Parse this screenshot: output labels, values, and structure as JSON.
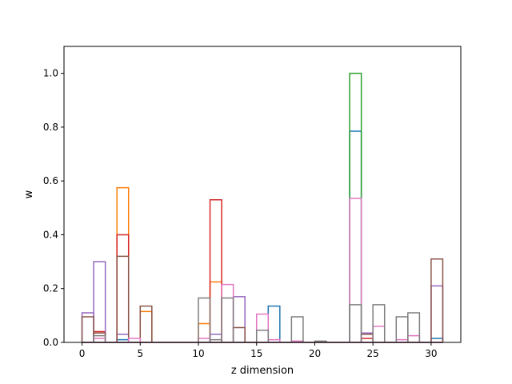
{
  "chart_data": {
    "type": "histogram-step",
    "title": "",
    "xlabel": "z dimension",
    "ylabel": "w",
    "xlim": [
      -1.55,
      32.55
    ],
    "ylim": [
      0,
      1.1
    ],
    "xticks": [
      0,
      5,
      10,
      15,
      20,
      25,
      30
    ],
    "yticks": [
      0.0,
      0.2,
      0.4,
      0.6,
      0.8,
      1.0
    ],
    "xtick_labels": [
      "0",
      "5",
      "10",
      "15",
      "20",
      "25",
      "30"
    ],
    "ytick_labels": [
      "0.0",
      "0.2",
      "0.4",
      "0.6",
      "0.8",
      "1.0"
    ],
    "grid": false,
    "legend": "none",
    "series": [
      {
        "color": "#1f77b4",
        "x": [
          3,
          16,
          23,
          30
        ],
        "values": [
          0.01,
          0.135,
          0.785,
          0.015
        ]
      },
      {
        "color": "#ff7f0e",
        "x": [
          3,
          5,
          10,
          11
        ],
        "values": [
          0.575,
          0.115,
          0.07,
          0.225
        ]
      },
      {
        "color": "#2ca02c",
        "x": [
          23
        ],
        "values": [
          1.0
        ]
      },
      {
        "color": "#d62728",
        "x": [
          1,
          3,
          11,
          24
        ],
        "values": [
          0.04,
          0.4,
          0.53,
          0.015
        ]
      },
      {
        "color": "#9467bd",
        "x": [
          0,
          1,
          3,
          11,
          13,
          24,
          30
        ],
        "values": [
          0.11,
          0.3,
          0.03,
          0.03,
          0.17,
          0.035,
          0.21
        ]
      },
      {
        "color": "#8c564b",
        "x": [
          0,
          1,
          3,
          5,
          13,
          24,
          30
        ],
        "values": [
          0.095,
          0.035,
          0.32,
          0.135,
          0.055,
          0.03,
          0.31
        ]
      },
      {
        "color": "#e377c2",
        "x": [
          1,
          4,
          10,
          12,
          15,
          16,
          18,
          23,
          25,
          27,
          28
        ],
        "values": [
          0.015,
          0.015,
          0.015,
          0.215,
          0.105,
          0.01,
          0.005,
          0.535,
          0.06,
          0.01,
          0.025
        ]
      },
      {
        "color": "#7f7f7f",
        "x": [
          1,
          10,
          11,
          12,
          15,
          18,
          20,
          23,
          25,
          27,
          28
        ],
        "values": [
          0.025,
          0.165,
          0.01,
          0.165,
          0.045,
          0.095,
          0.005,
          0.14,
          0.14,
          0.095,
          0.11
        ]
      }
    ]
  }
}
